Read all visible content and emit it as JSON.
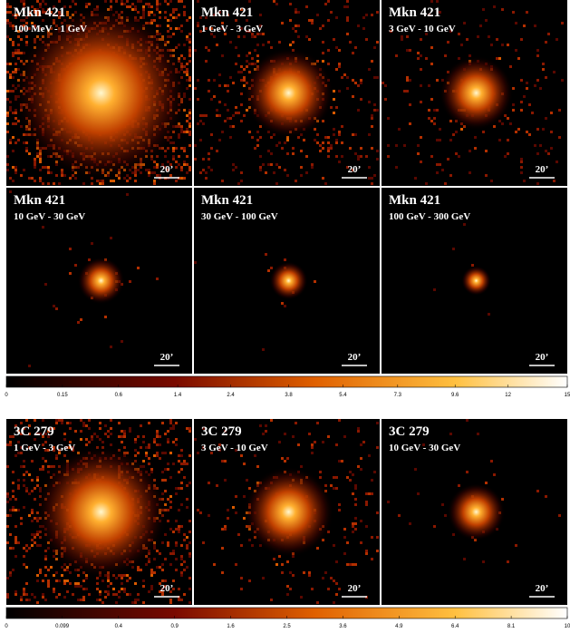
{
  "groups": [
    {
      "panels": [
        {
          "source": "Mkn 421",
          "band": "100 MeV - 1 GeV",
          "scale_bar": "20’"
        },
        {
          "source": "Mkn 421",
          "band": "1 GeV - 3 GeV",
          "scale_bar": "20’"
        },
        {
          "source": "Mkn 421",
          "band": "3 GeV - 10 GeV",
          "scale_bar": "20’"
        },
        {
          "source": "Mkn 421",
          "band": "10 GeV - 30 GeV",
          "scale_bar": "20’"
        },
        {
          "source": "Mkn 421",
          "band": "30 GeV - 100 GeV",
          "scale_bar": "20’"
        },
        {
          "source": "Mkn 421",
          "band": "100 GeV - 300 GeV",
          "scale_bar": "20’"
        }
      ],
      "colorbar": {
        "scale": "sqrt",
        "lim": [
          0,
          15
        ],
        "ticks": [
          0,
          0.15,
          0.6,
          1.4,
          2.4,
          3.8,
          5.4,
          7.3,
          9.6,
          12,
          15
        ]
      }
    },
    {
      "panels": [
        {
          "source": "3C 279",
          "band": "1 GeV - 3 GeV",
          "scale_bar": "20’"
        },
        {
          "source": "3C 279",
          "band": "3 GeV - 10 GeV",
          "scale_bar": "20’"
        },
        {
          "source": "3C 279",
          "band": "10 GeV - 30 GeV",
          "scale_bar": "20’"
        }
      ],
      "colorbar": {
        "scale": "sqrt",
        "lim": [
          0,
          10
        ],
        "ticks": [
          0,
          0.099,
          0.4,
          0.9,
          1.6,
          2.5,
          3.6,
          4.9,
          6.4,
          8.1,
          10
        ]
      }
    }
  ]
}
